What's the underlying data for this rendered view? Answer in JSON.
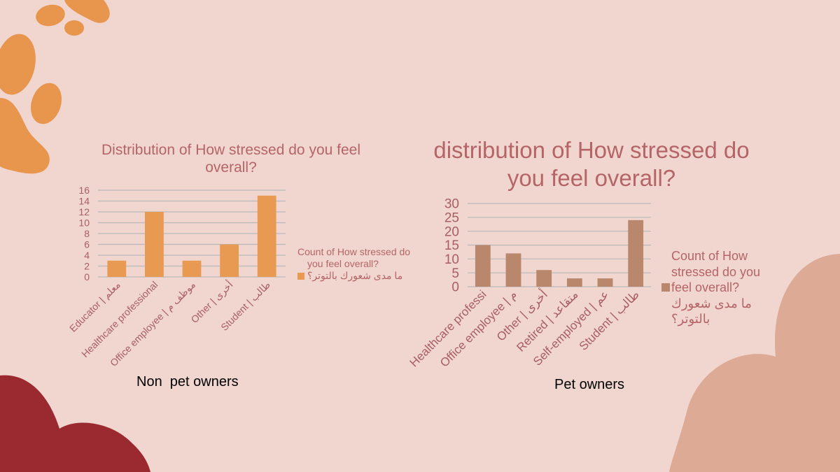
{
  "slide": {
    "colors": {
      "background": "#f0d6cf",
      "title": "#b56468",
      "axis_text": "#a85f64",
      "bar_left": "#e89a52",
      "bar_right": "#b9876c",
      "grid": "#b8b8b8",
      "paw": "#e8954d",
      "blob_dark": "#9b2a30",
      "blob_light": "#dcaa95"
    },
    "decorations": [
      "paw-print-icon",
      "dark-red-blob",
      "peach-blob"
    ]
  },
  "chart_data": [
    {
      "type": "bar",
      "title": "Distribution of How stressed do you feel overall?",
      "caption": "Non  pet owners",
      "categories": [
        "Educator | معلم",
        "Healthcare professional",
        "Office employee | موظف م",
        "Other | أخرى",
        "Student | طالب"
      ],
      "values": [
        3,
        12,
        3,
        6,
        15
      ],
      "ylim": [
        0,
        16
      ],
      "yticks": [
        "0",
        "2",
        "4",
        "6",
        "8",
        "10",
        "12",
        "14",
        "16"
      ],
      "series": [
        {
          "name": "Count of How stressed do you feel overall?",
          "values": [
            3,
            12,
            3,
            6,
            15
          ]
        }
      ],
      "legend_text": "Count of How stressed do you feel overall?",
      "legend_arabic": "ما مدى شعورك بالتوتر؟",
      "legend_position": "right",
      "grid": true,
      "xlabel": "",
      "ylabel": ""
    },
    {
      "type": "bar",
      "title": "distribution of How stressed do you feel overall?",
      "caption": "Pet owners",
      "categories": [
        "Healthcare professi",
        "Office employee | م",
        "Other | أخرى",
        "Retired | متقاعد",
        "Self-employed | عم",
        "Student | طالب"
      ],
      "values": [
        15,
        12,
        6,
        3,
        3,
        24
      ],
      "ylim": [
        0,
        30
      ],
      "yticks": [
        "0",
        "5",
        "10",
        "15",
        "20",
        "25",
        "30"
      ],
      "series": [
        {
          "name": "Count of How stressed do you feel overall?",
          "values": [
            15,
            12,
            6,
            3,
            3,
            24
          ]
        }
      ],
      "legend_text": "Count of How stressed do you feel overall?",
      "legend_arabic": "ما مدى شعورك بالتوتر؟",
      "legend_position": "right",
      "grid": true,
      "xlabel": "",
      "ylabel": ""
    }
  ]
}
